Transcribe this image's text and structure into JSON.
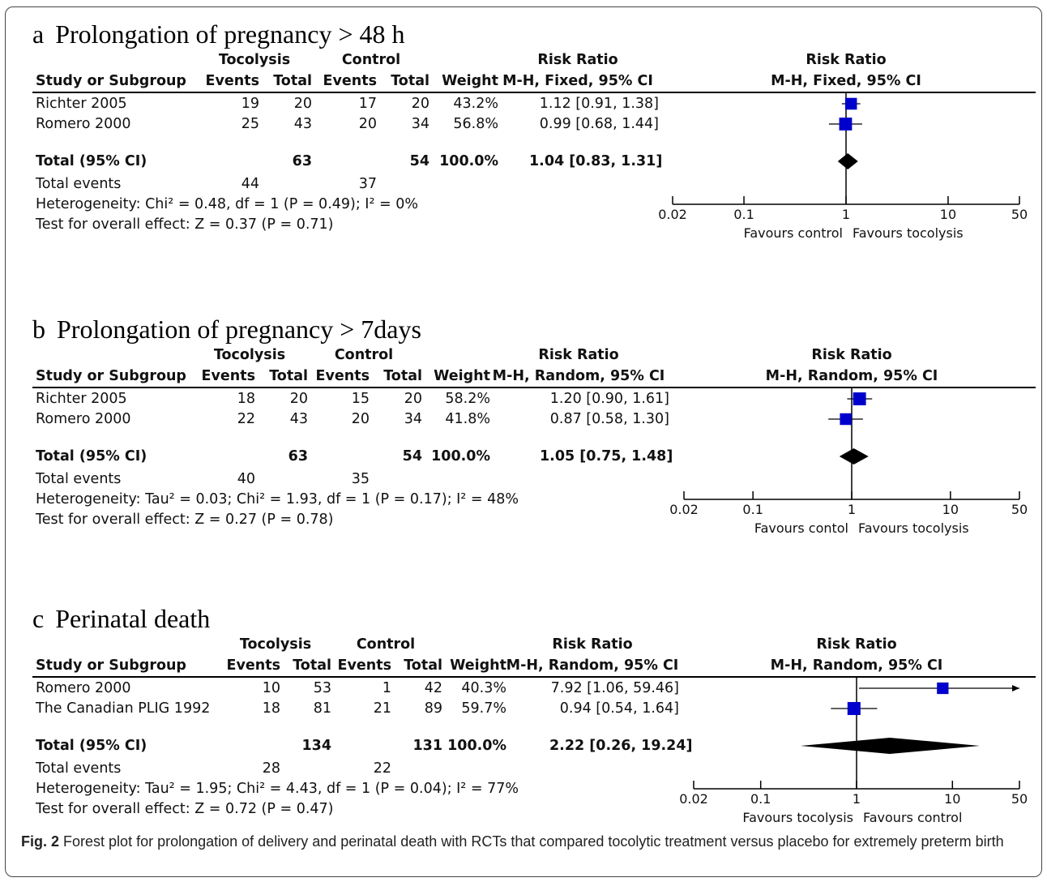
{
  "caption": {
    "label": "Fig. 2",
    "text": "Forest plot for prolongation of delivery and perinatal death with RCTs that compared tocolytic treatment versus placebo for extremely preterm birth"
  },
  "chart_data": [
    {
      "type": "forest",
      "letter": "a",
      "title": "Prolongation of pregnancy > 48 h",
      "header": {
        "group1": "Tocolysis",
        "group2": "Control",
        "study_col": "Study or Subgroup",
        "events": "Events",
        "total": "Total",
        "weight": "Weight",
        "rr_title": "Risk Ratio",
        "rr_method": "M-H, Fixed, 95% CI"
      },
      "studies": [
        {
          "name": "Richter 2005",
          "e1": "19",
          "t1": "20",
          "e2": "17",
          "t2": "20",
          "weight": "43.2%",
          "ci_text": "1.12 [0.91, 1.38]",
          "rr": 1.12,
          "lo": 0.91,
          "hi": 1.38,
          "w": 43.2
        },
        {
          "name": "Romero 2000",
          "e1": "25",
          "t1": "43",
          "e2": "20",
          "t2": "34",
          "weight": "56.8%",
          "ci_text": "0.99 [0.68, 1.44]",
          "rr": 0.99,
          "lo": 0.68,
          "hi": 1.44,
          "w": 56.8
        }
      ],
      "total": {
        "label": "Total (95% CI)",
        "t1": "63",
        "t2": "54",
        "weight": "100.0%",
        "ci_text": "1.04 [0.83, 1.31]",
        "rr": 1.04,
        "lo": 0.83,
        "hi": 1.31
      },
      "total_events": {
        "label": "Total events",
        "e1": "44",
        "e2": "37"
      },
      "heterogeneity": "Heterogeneity: Chi² = 0.48, df = 1 (P = 0.49); I² = 0%",
      "overall_effect": "Test for overall effect: Z = 0.37 (P = 0.71)",
      "axis": {
        "scale": "log",
        "ticks": [
          "0.02",
          "0.1",
          "1",
          "10",
          "50"
        ],
        "favours_left": "Favours control",
        "favours_right": "Favours tocolysis"
      }
    },
    {
      "type": "forest",
      "letter": "b",
      "title": "Prolongation of pregnancy > 7days",
      "header": {
        "group1": "Tocolysis",
        "group2": "Control",
        "study_col": "Study or Subgroup",
        "events": "Events",
        "total": "Total",
        "weight": "Weight",
        "rr_title": "Risk Ratio",
        "rr_method": "M-H, Random, 95% CI"
      },
      "studies": [
        {
          "name": "Richter 2005",
          "e1": "18",
          "t1": "20",
          "e2": "15",
          "t2": "20",
          "weight": "58.2%",
          "ci_text": "1.20 [0.90, 1.61]",
          "rr": 1.2,
          "lo": 0.9,
          "hi": 1.61,
          "w": 58.2
        },
        {
          "name": "Romero 2000",
          "e1": "22",
          "t1": "43",
          "e2": "20",
          "t2": "34",
          "weight": "41.8%",
          "ci_text": "0.87 [0.58, 1.30]",
          "rr": 0.87,
          "lo": 0.58,
          "hi": 1.3,
          "w": 41.8
        }
      ],
      "total": {
        "label": "Total (95% CI)",
        "t1": "63",
        "t2": "54",
        "weight": "100.0%",
        "ci_text": "1.05 [0.75, 1.48]",
        "rr": 1.05,
        "lo": 0.75,
        "hi": 1.48
      },
      "total_events": {
        "label": "Total events",
        "e1": "40",
        "e2": "35"
      },
      "heterogeneity": "Heterogeneity: Tau² = 0.03; Chi² = 1.93, df = 1 (P = 0.17); I² = 48%",
      "overall_effect": "Test for overall effect: Z = 0.27 (P = 0.78)",
      "axis": {
        "scale": "log",
        "ticks": [
          "0.02",
          "0.1",
          "1",
          "10",
          "50"
        ],
        "favours_left": "Favours contol",
        "favours_right": "Favours tocolysis"
      }
    },
    {
      "type": "forest",
      "letter": "c",
      "title": "Perinatal death",
      "header": {
        "group1": "Tocolysis",
        "group2": "Control",
        "study_col": "Study or Subgroup",
        "events": "Events",
        "total": "Total",
        "weight": "Weight",
        "rr_title": "Risk Ratio",
        "rr_method": "M-H, Random, 95% CI"
      },
      "studies": [
        {
          "name": "Romero 2000",
          "e1": "10",
          "t1": "53",
          "e2": "1",
          "t2": "42",
          "weight": "40.3%",
          "ci_text": "7.92 [1.06, 59.46]",
          "rr": 7.92,
          "lo": 1.06,
          "hi": 59.46,
          "w": 40.3
        },
        {
          "name": "The Canadian PLIG 1992",
          "e1": "18",
          "t1": "81",
          "e2": "21",
          "t2": "89",
          "weight": "59.7%",
          "ci_text": "0.94 [0.54, 1.64]",
          "rr": 0.94,
          "lo": 0.54,
          "hi": 1.64,
          "w": 59.7
        }
      ],
      "total": {
        "label": "Total (95% CI)",
        "t1": "134",
        "t2": "131",
        "weight": "100.0%",
        "ci_text": "2.22 [0.26, 19.24]",
        "rr": 2.22,
        "lo": 0.26,
        "hi": 19.24
      },
      "total_events": {
        "label": "Total events",
        "e1": "28",
        "e2": "22"
      },
      "heterogeneity": "Heterogeneity: Tau² = 1.95; Chi² = 4.43, df = 1 (P = 0.04); I² = 77%",
      "overall_effect": "Test for overall effect: Z = 0.72 (P = 0.47)",
      "axis": {
        "scale": "log",
        "ticks": [
          "0.02",
          "0.1",
          "1",
          "10",
          "50"
        ],
        "favours_left": "Favours tocolysis",
        "favours_right": "Favours control"
      }
    }
  ],
  "colors": {
    "study_marker": "#0000cc",
    "total_diamond": "#000000"
  }
}
